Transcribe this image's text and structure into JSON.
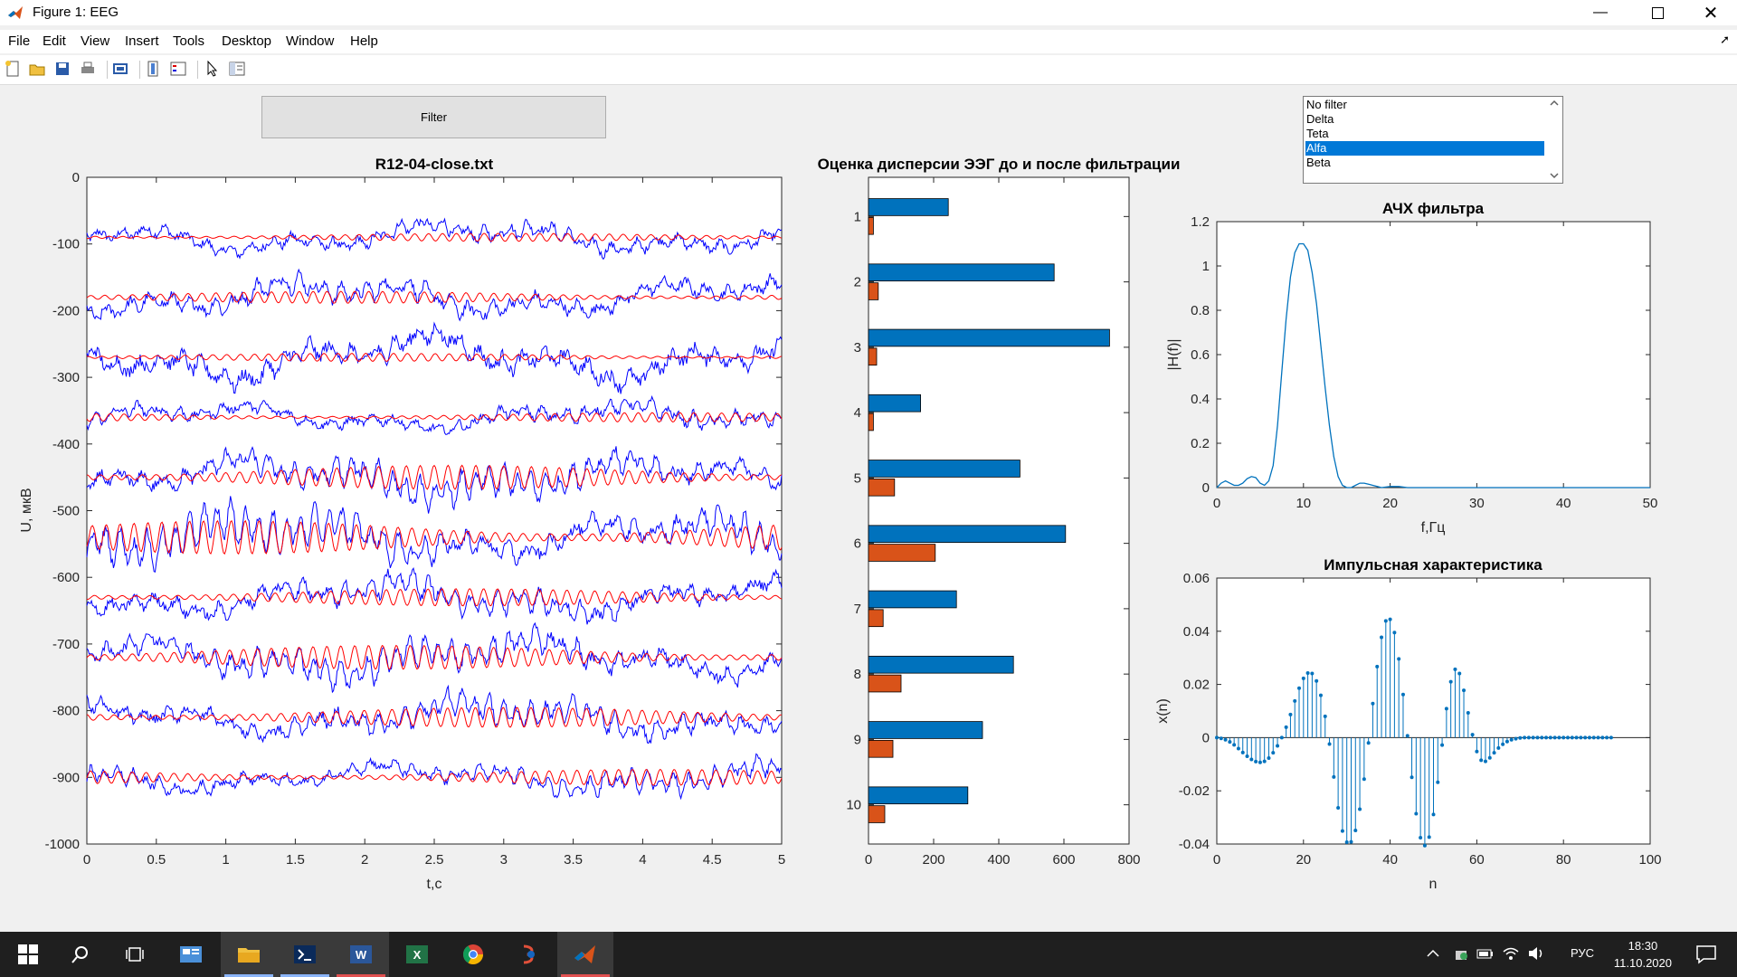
{
  "window": {
    "title": "Figure 1: EEG"
  },
  "menu": [
    "File",
    "Edit",
    "View",
    "Insert",
    "Tools",
    "Desktop",
    "Window",
    "Help"
  ],
  "toolbar": [
    "new-figure-icon",
    "open-file-icon",
    "save-icon",
    "print-icon",
    "print-preview-icon",
    "colorbar-icon",
    "legend-icon",
    "pointer-icon",
    "property-editor-icon"
  ],
  "controls": {
    "filter_button": "Filter",
    "listbox": {
      "options": [
        "No filter",
        "Delta",
        "Teta",
        "Alfa",
        "Beta"
      ],
      "selected": "Alfa"
    }
  },
  "colors": {
    "raw": "#0000ff",
    "filtered": "#ff0000",
    "bar_before": "#0072bd",
    "bar_after": "#d95319",
    "response": "#0072bd",
    "selection": "#0078d7"
  },
  "chart_data": [
    {
      "type": "line",
      "title": "R12-04-close.txt",
      "xlabel": "t,c",
      "ylabel": "U, мкВ",
      "xlim": [
        0,
        5
      ],
      "ylim": [
        -1000,
        0
      ],
      "xticks": [
        0,
        0.5,
        1,
        1.5,
        2,
        2.5,
        3,
        3.5,
        4,
        4.5,
        5
      ],
      "xtick_labels": [
        "0",
        "0.5",
        "1",
        "1.5",
        "2",
        "2.5",
        "3",
        "3.5",
        "4",
        "4.5",
        "5"
      ],
      "yticks": [
        0,
        -100,
        -200,
        -300,
        -400,
        -500,
        -600,
        -700,
        -800,
        -900,
        -1000
      ],
      "ytick_labels": [
        "0",
        "-100",
        "-200",
        "-300",
        "-400",
        "-500",
        "-600",
        "-700",
        "-800",
        "-900",
        "-1000"
      ],
      "channel_baselines": [
        -90,
        -180,
        -270,
        -360,
        -450,
        -540,
        -630,
        -720,
        -810,
        -900
      ],
      "raw_amplitude": [
        25,
        30,
        40,
        22,
        32,
        35,
        30,
        32,
        28,
        22
      ],
      "filtered_amplitude": [
        6,
        9,
        6,
        7,
        18,
        25,
        13,
        18,
        15,
        12
      ],
      "alpha_frequency_hz": 10,
      "series": [
        {
          "kind": "raw",
          "style": "blue"
        },
        {
          "kind": "filtered",
          "style": "red"
        }
      ]
    },
    {
      "type": "bar",
      "orientation": "horizontal",
      "title": "Оценка дисперсии ЭЭГ до и после фильтрации",
      "categories": [
        "1",
        "2",
        "3",
        "4",
        "5",
        "6",
        "7",
        "8",
        "9",
        "10"
      ],
      "xlim": [
        0,
        800
      ],
      "xticks": [
        0,
        200,
        400,
        600,
        800
      ],
      "xtick_labels": [
        "0",
        "200",
        "400",
        "600",
        "800"
      ],
      "series": [
        {
          "values": [
            245,
            570,
            740,
            160,
            465,
            605,
            270,
            445,
            350,
            305
          ]
        },
        {
          "values": [
            15,
            30,
            25,
            15,
            80,
            205,
            45,
            100,
            75,
            50
          ]
        }
      ]
    },
    {
      "type": "line",
      "title": "АЧХ фильтра",
      "xlabel": "f,Гц",
      "ylabel": "|H(f)|",
      "xlim": [
        0,
        50
      ],
      "ylim": [
        0,
        1.2
      ],
      "xticks": [
        0,
        10,
        20,
        30,
        40,
        50
      ],
      "xtick_labels": [
        "0",
        "10",
        "20",
        "30",
        "40",
        "50"
      ],
      "yticks": [
        0,
        0.2,
        0.4,
        0.6,
        0.8,
        1,
        1.2
      ],
      "ytick_labels": [
        "0",
        "0.2",
        "0.4",
        "0.6",
        "0.8",
        "1",
        "1.2"
      ],
      "x": [
        0,
        0.5,
        1,
        1.5,
        2,
        2.5,
        3,
        3.5,
        4,
        4.5,
        5,
        5.5,
        6,
        6.5,
        7,
        7.5,
        8,
        8.5,
        9,
        9.5,
        10,
        10.5,
        11,
        11.5,
        12,
        12.5,
        13,
        13.5,
        14,
        14.5,
        15,
        15.5,
        16,
        16.5,
        17,
        17.5,
        18,
        19,
        20,
        21,
        22,
        25,
        30,
        35,
        40,
        45,
        50
      ],
      "y": [
        0.0,
        0.02,
        0.03,
        0.02,
        0.01,
        0.01,
        0.02,
        0.04,
        0.05,
        0.045,
        0.02,
        0.01,
        0.03,
        0.1,
        0.28,
        0.52,
        0.76,
        0.95,
        1.06,
        1.1,
        1.1,
        1.07,
        0.97,
        0.83,
        0.64,
        0.45,
        0.28,
        0.14,
        0.05,
        0.01,
        0.0,
        0.0,
        0.01,
        0.02,
        0.02,
        0.015,
        0.01,
        0.0,
        0.005,
        0.005,
        0.0,
        0.0,
        0.0,
        0.0,
        0.0,
        0.0,
        0.0
      ]
    },
    {
      "type": "scatter",
      "style": "stem",
      "title": "Импульсная характеристика",
      "xlabel": "n",
      "ylabel": "x(n)",
      "xlim": [
        0,
        100
      ],
      "ylim": [
        -0.04,
        0.06
      ],
      "xticks": [
        0,
        20,
        40,
        60,
        80,
        100
      ],
      "xtick_labels": [
        "0",
        "20",
        "40",
        "60",
        "80",
        "100"
      ],
      "yticks": [
        0.06,
        0.04,
        0.02,
        0,
        -0.02,
        -0.04
      ],
      "ytick_labels": [
        "0.06",
        "0.04",
        "0.02",
        "0",
        "-0.02",
        "-0.04"
      ],
      "x": [
        0,
        1,
        2,
        3,
        4,
        5,
        6,
        7,
        8,
        9,
        10,
        11,
        12,
        13,
        14,
        15,
        16,
        17,
        18,
        19,
        20,
        21,
        22,
        23,
        24,
        25,
        26,
        27,
        28,
        29,
        30,
        31,
        32,
        33,
        34,
        35,
        36,
        37,
        38,
        39,
        40,
        41,
        42,
        43,
        44,
        45,
        46,
        47,
        48,
        49,
        50,
        51,
        52,
        53,
        54,
        55,
        56,
        57,
        58,
        59,
        60,
        61,
        62,
        63,
        64,
        65,
        66,
        67,
        68,
        69,
        70,
        71,
        72,
        73,
        74,
        75,
        76,
        77,
        78,
        79,
        80,
        81,
        82,
        83,
        84,
        85,
        86,
        87,
        88,
        89,
        90,
        91
      ],
      "y": [
        0,
        -0.0003,
        -0.0008,
        -0.0016,
        -0.0027,
        -0.0041,
        -0.0056,
        -0.007,
        -0.0082,
        -0.009,
        -0.0093,
        -0.0089,
        -0.0077,
        -0.0057,
        -0.0031,
        0.0,
        0.0039,
        0.0087,
        0.0138,
        0.0186,
        0.0223,
        0.0243,
        0.0241,
        0.0213,
        0.0159,
        0.008,
        -0.0024,
        -0.0148,
        -0.0264,
        -0.0351,
        -0.0393,
        -0.0392,
        -0.0349,
        -0.0269,
        -0.0156,
        -0.002,
        0.0128,
        0.0267,
        0.0377,
        0.0439,
        0.0445,
        0.0395,
        0.0296,
        0.0162,
        0.0007,
        -0.0149,
        -0.0286,
        -0.0376,
        -0.0406,
        -0.0374,
        -0.0289,
        -0.0168,
        -0.0028,
        0.0109,
        0.021,
        0.0257,
        0.0241,
        0.0178,
        0.0093,
        0.0011,
        -0.0052,
        -0.0085,
        -0.0089,
        -0.0076,
        -0.0057,
        -0.0039,
        -0.0025,
        -0.0015,
        -0.0008,
        -0.0004,
        -0.0001,
        0,
        0,
        0,
        0,
        0,
        0,
        0,
        0,
        0,
        0,
        0,
        0,
        0,
        0,
        0,
        0,
        0,
        0,
        0,
        0,
        0
      ]
    }
  ],
  "taskbar": {
    "icons": [
      "windows-start-icon",
      "search-icon",
      "task-view-icon",
      "news-icon",
      "file-explorer-icon",
      "terminal-icon",
      "word-icon",
      "excel-icon",
      "chrome-icon",
      "app-icon",
      "matlab-icon"
    ],
    "lang": "РУС",
    "time": "18:30",
    "date": "11.10.2020"
  }
}
